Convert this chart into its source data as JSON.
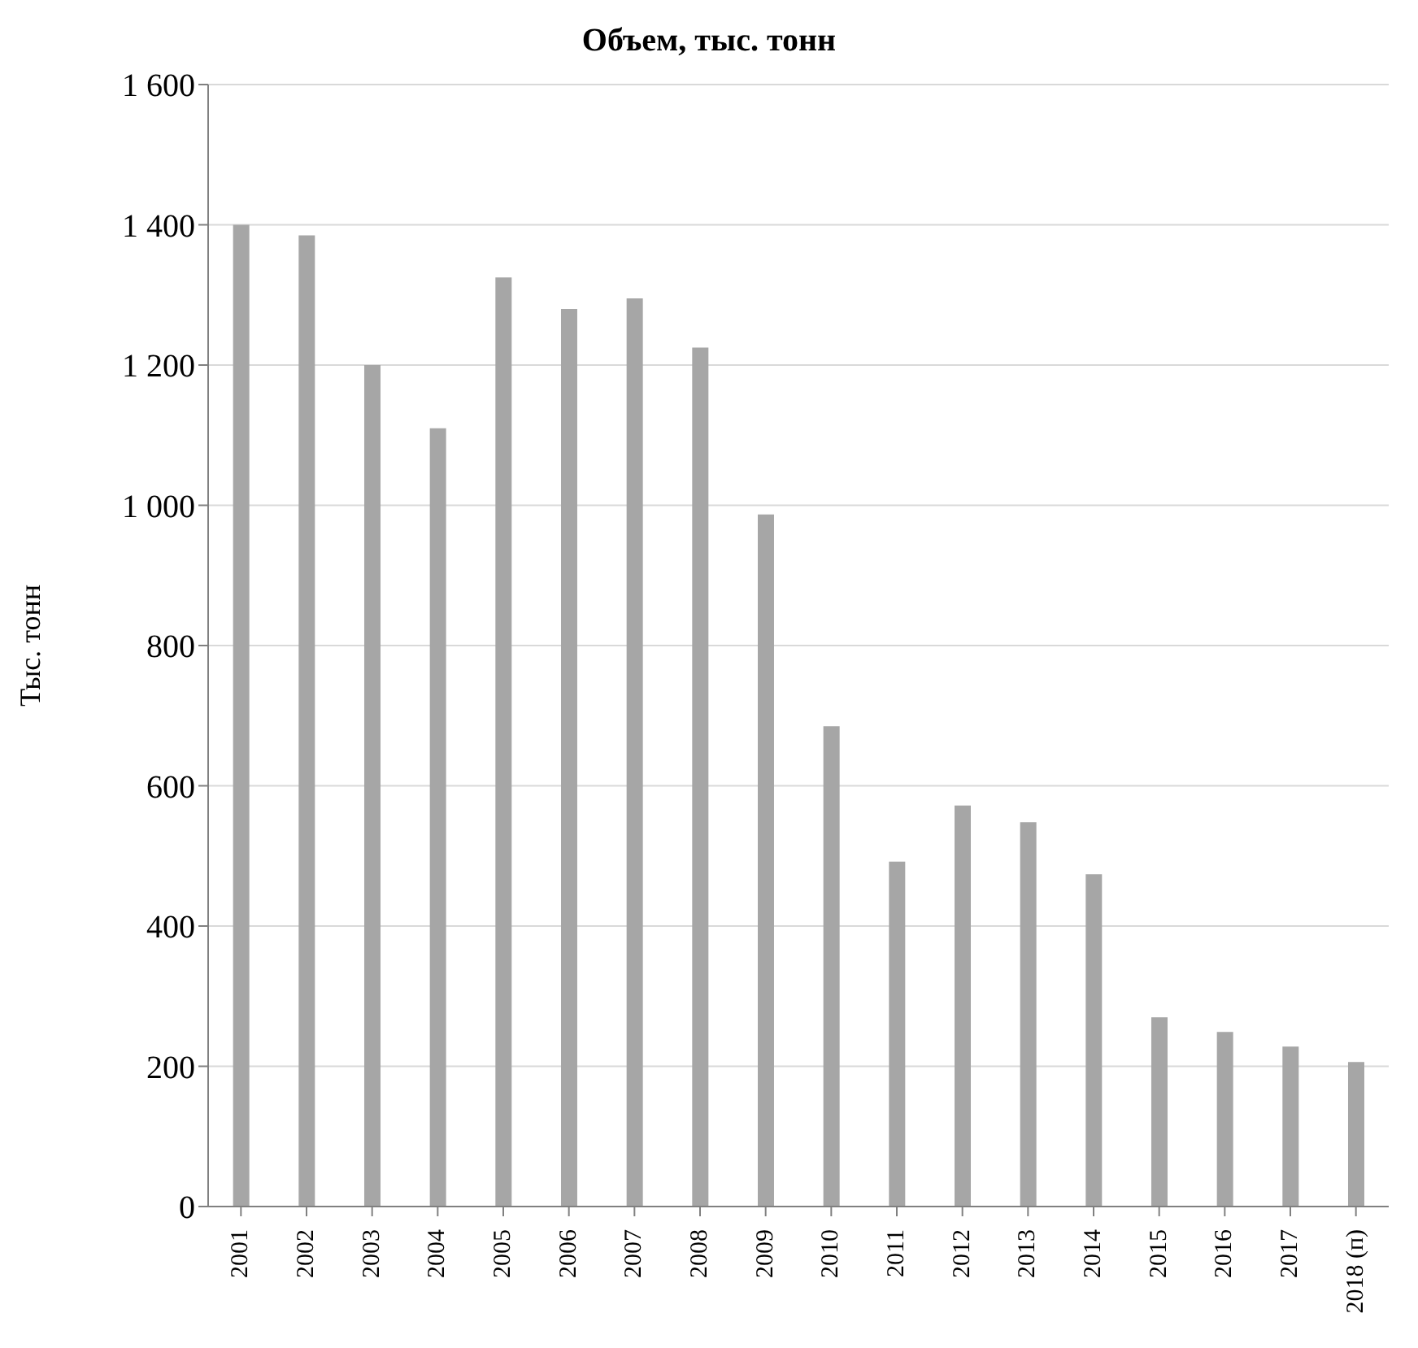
{
  "chart_data": {
    "type": "bar",
    "title": "Объем, тыс. тонн",
    "ylabel": "Тыс. тонн",
    "categories": [
      "2001",
      "2002",
      "2003",
      "2004",
      "2005",
      "2006",
      "2007",
      "2008",
      "2009",
      "2010",
      "2011",
      "2012",
      "2013",
      "2014",
      "2015",
      "2016",
      "2017",
      "2018 (п)"
    ],
    "values": [
      1400,
      1385,
      1200,
      1110,
      1325,
      1280,
      1295,
      1225,
      987,
      685,
      492,
      572,
      548,
      474,
      270,
      249,
      228,
      206
    ],
    "color": "#a6a6a6",
    "ylim": [
      0,
      1600
    ],
    "yticks": [
      {
        "value": 0,
        "label": "0"
      },
      {
        "value": 200,
        "label": "200"
      },
      {
        "value": 400,
        "label": "400"
      },
      {
        "value": 600,
        "label": "600"
      },
      {
        "value": 800,
        "label": "800"
      },
      {
        "value": 1000,
        "label": "1 000"
      },
      {
        "value": 1200,
        "label": "1 200"
      },
      {
        "value": 1400,
        "label": "1 400"
      },
      {
        "value": 1600,
        "label": "1 600"
      }
    ],
    "grid": "y"
  }
}
